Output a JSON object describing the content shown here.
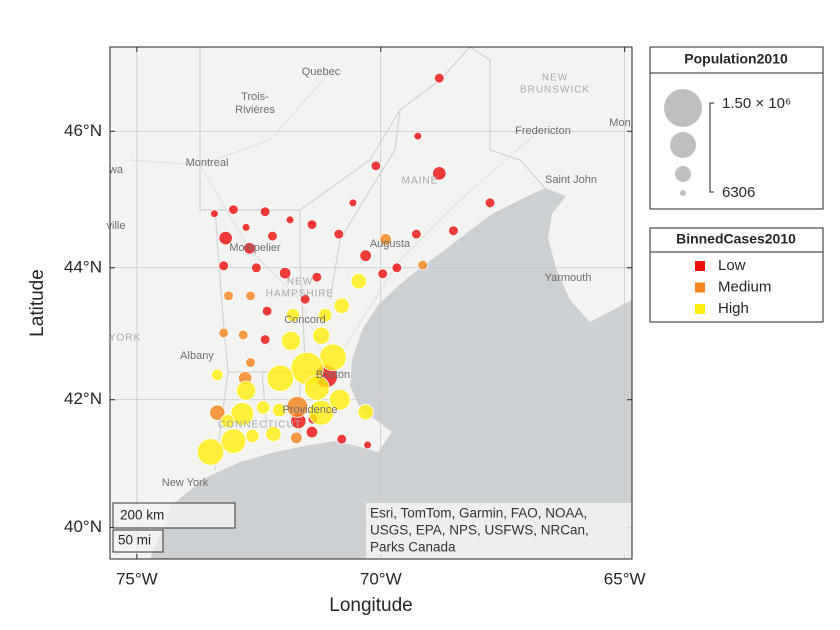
{
  "chart_data": {
    "type": "geobubble",
    "xlabel": "Longitude",
    "ylabel": "Latitude",
    "xlim": [
      -75.55,
      -64.85
    ],
    "ylim": [
      39.5,
      47.2
    ],
    "xticks": [
      {
        "value": -75,
        "label": "75°W"
      },
      {
        "value": -70,
        "label": "70°W"
      },
      {
        "value": -65,
        "label": "65°W"
      }
    ],
    "yticks": [
      {
        "value": 40,
        "label": "40°N"
      },
      {
        "value": 42,
        "label": "42°N"
      },
      {
        "value": 44,
        "label": "44°N"
      },
      {
        "value": 46,
        "label": "46°N"
      }
    ],
    "grid": true,
    "lon": [
      -68.8,
      -69.24,
      -70.1,
      -68.8,
      -67.76,
      -70.57,
      -73.41,
      -73.02,
      -73.18,
      -72.37,
      -71.86,
      -71.41,
      -72.76,
      -72.22,
      -72.69,
      -70.86,
      -68.51,
      -69.27,
      -73.22,
      -72.55,
      -71.96,
      -71.31,
      -70.31,
      -69.96,
      -69.67,
      -71.55,
      -72.33,
      -72.37,
      -71.12,
      -71.69,
      -71.39,
      -71.41,
      -70.8,
      -70.27,
      -69.9,
      -69.14,
      -73.12,
      -72.67,
      -73.22,
      -72.82,
      -72.67,
      -72.78,
      -73.35,
      -71.71,
      -71.73,
      -70.45,
      -70.8,
      -71.8,
      -71.14,
      -71.22,
      -71.84,
      -70.98,
      -71.51,
      -73.35,
      -72.06,
      -72.76,
      -71.31,
      -70.84,
      -70.31,
      -71.22,
      -72.41,
      -72.84,
      -73.14,
      -72.08,
      -72.63,
      -72.2,
      -73.02,
      -73.49
    ],
    "lat": [
      46.76,
      45.93,
      45.5,
      45.39,
      44.96,
      44.96,
      44.8,
      44.86,
      44.44,
      44.83,
      44.71,
      44.64,
      44.6,
      44.47,
      44.29,
      44.5,
      44.55,
      44.5,
      44.03,
      44.0,
      43.92,
      43.86,
      44.18,
      43.91,
      44.0,
      43.53,
      43.35,
      42.92,
      42.36,
      41.67,
      41.7,
      41.5,
      41.39,
      41.3,
      44.42,
      44.04,
      43.58,
      43.58,
      43.02,
      42.99,
      42.57,
      42.33,
      41.8,
      41.89,
      41.41,
      43.8,
      43.43,
      43.29,
      43.29,
      42.98,
      42.9,
      42.65,
      42.48,
      42.38,
      42.33,
      42.14,
      42.18,
      42.0,
      41.81,
      41.8,
      41.88,
      41.78,
      41.67,
      41.84,
      41.44,
      41.47,
      41.36,
      41.19
    ],
    "size": [
      182000,
      94000,
      180000,
      360000,
      185000,
      92000,
      95000,
      178000,
      355000,
      184000,
      96000,
      183000,
      93000,
      181000,
      270000,
      185000,
      182000,
      179000,
      184000,
      186000,
      268000,
      180000,
      272000,
      183000,
      181000,
      184000,
      182000,
      180000,
      800000,
      445000,
      183000,
      270000,
      181000,
      94000,
      271000,
      183000,
      182000,
      180000,
      181000,
      184000,
      183000,
      357000,
      448000,
      710000,
      269000,
      446000,
      444000,
      356000,
      360000,
      533000,
      620000,
      975000,
      1240000,
      268000,
      970000,
      622000,
      886000,
      708000,
      447000,
      884000,
      358000,
      797000,
      357000,
      359000,
      356000,
      446000,
      886000,
      972000
    ],
    "category": [
      "Low",
      "Low",
      "Low",
      "Low",
      "Low",
      "Low",
      "Low",
      "Low",
      "Low",
      "Low",
      "Low",
      "Low",
      "Low",
      "Low",
      "Low",
      "Low",
      "Low",
      "Low",
      "Low",
      "Low",
      "Low",
      "Low",
      "Low",
      "Low",
      "Low",
      "Low",
      "Low",
      "Low",
      "Low",
      "Low",
      "Low",
      "Low",
      "Low",
      "Low",
      "Medium",
      "Medium",
      "Medium",
      "Medium",
      "Medium",
      "Medium",
      "Medium",
      "Medium",
      "Medium",
      "Medium",
      "Medium",
      "High",
      "High",
      "High",
      "High",
      "High",
      "High",
      "High",
      "High",
      "High",
      "High",
      "High",
      "High",
      "High",
      "High",
      "High",
      "High",
      "High",
      "High",
      "High",
      "High",
      "High",
      "High",
      "High"
    ],
    "size_legend": {
      "title": "Population2010",
      "ticks": [
        {
          "value": 1500000,
          "label": "1.50 × 10⁶"
        },
        6306
      ]
    },
    "color_legend": {
      "title": "BinnedCases2010",
      "categories": [
        "Low",
        "Medium",
        "High"
      ],
      "colors": [
        "#ee1111",
        "#f5851f",
        "#ffee11"
      ]
    },
    "map_labels": [
      "Quebec",
      "Trois-",
      "Rivières",
      "NEW",
      "BRUNSWICK",
      "Fredericton",
      "Mon",
      "Montreal",
      "wa",
      "MAINE",
      "Saint John",
      "ville",
      "Augusta",
      "Montpelier",
      "NEW",
      "HAMPSHIRE",
      "Yarmouth",
      "Concord",
      "YORK",
      "Albany",
      "Boston",
      "Providence",
      "CONNECTICUT",
      "New York"
    ],
    "scale_bar": [
      "200 km",
      "50 mi"
    ],
    "attribution": [
      "Esri, TomTom, Garmin, FAO, NOAA,",
      "USGS, EPA, NPS, USFWS, NRCan,",
      "Parks Canada"
    ]
  }
}
